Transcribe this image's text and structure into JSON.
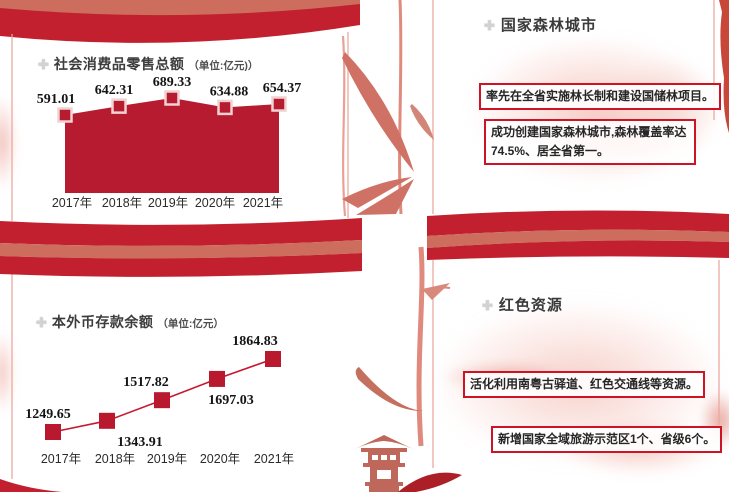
{
  "icons": {
    "plus": "✚"
  },
  "colors": {
    "roller_dark": "#c2202f",
    "roller_salmon": "#cc6d5d",
    "box_border": "#cc1426",
    "title_text": "#3a3a3a",
    "watercolor_pink": "#ee998a",
    "bamboo_salmon": "#e08a7e",
    "pagoda_red": "#bf675a"
  },
  "right_top": {
    "title": "国家森林城市",
    "boxes": [
      {
        "text": "率先在全省实施林长制和建设国储林项目。"
      },
      {
        "text": "成功创建国家森林城市,森林覆盖率达74.5%、居全省第一。"
      }
    ]
  },
  "right_bottom": {
    "title": "红色资源",
    "boxes": [
      {
        "text": "活化利用南粤古驿道、红色交通线等资源。"
      },
      {
        "text": "新增国家全域旅游示范区1个、省级6个。"
      }
    ]
  },
  "chart_data": [
    {
      "type": "area",
      "title": "社会消费品零售总额",
      "unit": "（单位:亿元)）",
      "categories": [
        "2017年",
        "2018年",
        "2019年",
        "2020年",
        "2021年"
      ],
      "values": [
        591.01,
        642.31,
        689.33,
        634.88,
        654.37
      ],
      "ylim": [
        591.01,
        689.33
      ],
      "grid": false,
      "legend": "none",
      "marker": "square",
      "colors": {
        "fill": "#b61b30",
        "marker": "#b61b30",
        "marker_border": "#f0d2d2"
      }
    },
    {
      "type": "line",
      "title": "本外币存款余额",
      "unit": "（单位:亿元）",
      "categories": [
        "2017年",
        "2018年",
        "2019年",
        "2020年",
        "2021年"
      ],
      "values": [
        1249.65,
        1343.91,
        1517.82,
        1697.03,
        1864.83
      ],
      "ylim": [
        1249.65,
        1864.83
      ],
      "grid": false,
      "legend": "none",
      "marker": "square",
      "colors": {
        "line": "#c41a31",
        "marker": "#b8192e"
      }
    }
  ]
}
